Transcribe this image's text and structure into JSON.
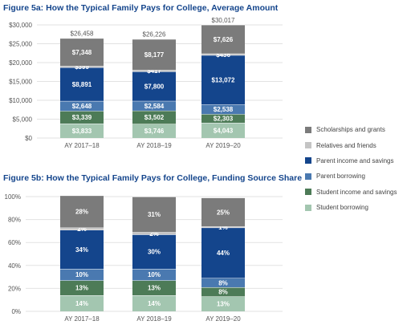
{
  "legend": {
    "items": [
      {
        "label": "Scholarships and grants",
        "color": "#7b7b7b"
      },
      {
        "label": "Relatives and friends",
        "color": "#c4c4c4"
      },
      {
        "label": "Parent income and savings",
        "color": "#14458c"
      },
      {
        "label": "Parent borrowing",
        "color": "#4a79b0"
      },
      {
        "label": "Student income and savings",
        "color": "#4d7b57"
      },
      {
        "label": "Student borrowing",
        "color": "#a3c6b0"
      }
    ]
  },
  "chart_data": [
    {
      "type": "bar",
      "stacked": true,
      "title": "Figure 5a: How the Typical Family Pays for College, Average Amount",
      "categories": [
        "AY 2017–18",
        "AY 2018–19",
        "AY 2019–20"
      ],
      "ylim": [
        0,
        30000
      ],
      "yticks": [
        "$0",
        "$5,000",
        "$10,000",
        "$15,000",
        "$20,000",
        "$25,000",
        "$30,000"
      ],
      "grid": true,
      "legend_position": "right",
      "series": [
        {
          "name": "Student borrowing",
          "values": [
            3833,
            3746,
            4043
          ],
          "labels": [
            "$3,833",
            "$3,746",
            "$4,043"
          ]
        },
        {
          "name": "Student income and savings",
          "values": [
            3339,
            3502,
            2303
          ],
          "labels": [
            "$3,339",
            "$3,502",
            "$2,303"
          ]
        },
        {
          "name": "Parent borrowing",
          "values": [
            2648,
            2584,
            2538
          ],
          "labels": [
            "$2,648",
            "$2,584",
            "$2,538"
          ]
        },
        {
          "name": "Parent income and savings",
          "values": [
            8891,
            7800,
            13072
          ],
          "labels": [
            "$8,891",
            "$7,800",
            "$13,072"
          ]
        },
        {
          "name": "Relatives and friends",
          "values": [
            399,
            417,
            436
          ],
          "labels": [
            "$399",
            "$417",
            "$436"
          ]
        },
        {
          "name": "Scholarships and grants",
          "values": [
            7348,
            8177,
            7626
          ],
          "labels": [
            "$7,348",
            "$8,177",
            "$7,626"
          ]
        }
      ],
      "totals": [
        "$26,458",
        "$26,226",
        "$30,017"
      ]
    },
    {
      "type": "bar",
      "stacked": true,
      "title": "Figure 5b: How the Typical Family Pays for College, Funding Source Share",
      "categories": [
        "AY 2017–18",
        "AY 2018–19",
        "AY 2019–20"
      ],
      "ylim": [
        0,
        100
      ],
      "yticks": [
        "0%",
        "20%",
        "40%",
        "60%",
        "80%",
        "100%"
      ],
      "grid": true,
      "series": [
        {
          "name": "Student borrowing",
          "values": [
            14,
            14,
            13
          ],
          "labels": [
            "14%",
            "14%",
            "13%"
          ]
        },
        {
          "name": "Student income and savings",
          "values": [
            13,
            13,
            8
          ],
          "labels": [
            "13%",
            "13%",
            "8%"
          ]
        },
        {
          "name": "Parent borrowing",
          "values": [
            10,
            10,
            8
          ],
          "labels": [
            "10%",
            "10%",
            "8%"
          ]
        },
        {
          "name": "Parent income and savings",
          "values": [
            34,
            30,
            44
          ],
          "labels": [
            "34%",
            "30%",
            "44%"
          ]
        },
        {
          "name": "Relatives and friends",
          "values": [
            2,
            2,
            1
          ],
          "labels": [
            "2%",
            "2%",
            "1%"
          ]
        },
        {
          "name": "Scholarships and grants",
          "values": [
            28,
            31,
            25
          ],
          "labels": [
            "28%",
            "31%",
            "25%"
          ]
        }
      ]
    }
  ]
}
